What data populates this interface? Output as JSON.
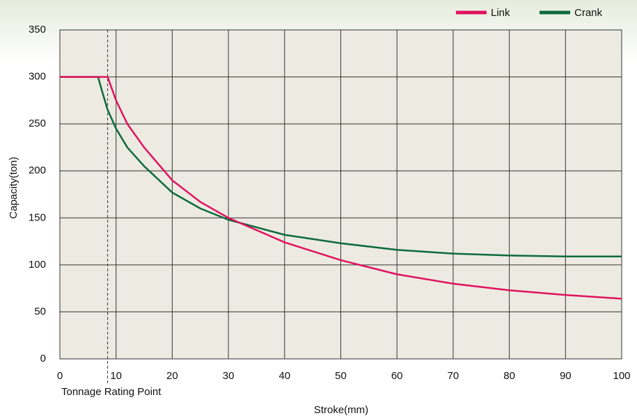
{
  "chart_data": {
    "type": "line",
    "x_label": "Stroke(mm)",
    "y_label": "Capacity(ton)",
    "xlim": [
      0,
      100
    ],
    "xticks": [
      0,
      10,
      20,
      30,
      40,
      50,
      60,
      70,
      80,
      90,
      100
    ],
    "ylim": [
      0,
      350
    ],
    "yticks": [
      0,
      50,
      100,
      150,
      200,
      250,
      300,
      350
    ],
    "grid": true,
    "legend": "top-right",
    "annotation": {
      "text": "Tonnage Rating Point",
      "x": 8.5
    },
    "series": [
      {
        "name": "Link",
        "color": "#e0115f",
        "x": [
          0,
          8.5,
          10,
          12,
          15,
          20,
          25,
          30,
          40,
          50,
          60,
          70,
          80,
          90,
          100
        ],
        "values": [
          300,
          300,
          275,
          250,
          225,
          190,
          167,
          150,
          124,
          105,
          90,
          80,
          73,
          68,
          64
        ]
      },
      {
        "name": "Crank",
        "color": "#0b6b3a",
        "x": [
          0,
          6.8,
          7.5,
          8.5,
          10,
          12,
          15,
          20,
          25,
          30,
          40,
          50,
          60,
          70,
          80,
          90,
          100
        ],
        "values": [
          300,
          300,
          285,
          265,
          245,
          225,
          205,
          177,
          160,
          148,
          132,
          123,
          116,
          112,
          110,
          109,
          109
        ]
      }
    ]
  }
}
